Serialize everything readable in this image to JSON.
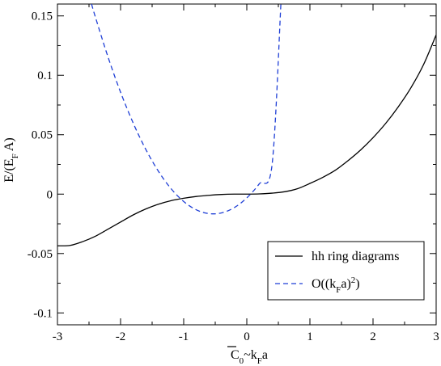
{
  "chart_data": {
    "type": "line",
    "xlabel": {
      "main": "C",
      "sub0": "0",
      "tilde": "~k",
      "subF": "F",
      "tail": "a"
    },
    "ylabel": {
      "pre": "E/(E",
      "sub": "F",
      "post": " A)"
    },
    "xlim": [
      -3,
      3
    ],
    "ylim": [
      -0.11,
      0.16
    ],
    "x_ticks": [
      -3,
      -2,
      -1,
      0,
      1,
      2,
      3
    ],
    "x_tick_labels": [
      "-3",
      "-2",
      "-1",
      "0",
      "1",
      "2",
      "3"
    ],
    "y_ticks": [
      -0.1,
      -0.05,
      0,
      0.05,
      0.1,
      0.15
    ],
    "y_tick_labels": [
      "-0.1",
      "-0.05",
      "0",
      "0.05",
      "0.1",
      "0.15"
    ],
    "grid": false,
    "legend_position": "bottom-right",
    "series": [
      {
        "name": "hh ring diagrams",
        "color": "#000000",
        "dash": "solid",
        "x": [
          -3.0,
          -2.8,
          -2.6,
          -2.4,
          -2.2,
          -2.0,
          -1.8,
          -1.6,
          -1.4,
          -1.2,
          -1.0,
          -0.8,
          -0.6,
          -0.4,
          -0.2,
          0.0,
          0.2,
          0.4,
          0.6,
          0.8,
          1.0,
          1.2,
          1.4,
          1.6,
          1.8,
          2.0,
          2.2,
          2.4,
          2.6,
          2.8,
          3.0
        ],
        "y": [
          -0.0435,
          -0.0432,
          -0.04,
          -0.0355,
          -0.0295,
          -0.0235,
          -0.0175,
          -0.0125,
          -0.0085,
          -0.0055,
          -0.0035,
          -0.002,
          -0.001,
          -0.0003,
          0.0,
          0.0,
          0.0002,
          0.0008,
          0.002,
          0.0045,
          0.009,
          0.014,
          0.02,
          0.028,
          0.037,
          0.0475,
          0.0595,
          0.0735,
          0.0895,
          0.109,
          0.134
        ]
      },
      {
        "name": "O((k_F a)^2)",
        "color": "#1f3fd6",
        "dash": "dashed",
        "legend_parts": {
          "pre": "O((k",
          "sub": "F",
          "mid": "a)",
          "sup": "2",
          "post": ")"
        },
        "x": [
          -2.46,
          -2.4,
          -2.2,
          -2.0,
          -1.8,
          -1.6,
          -1.4,
          -1.2,
          -1.0,
          -0.8,
          -0.6,
          -0.4,
          -0.2,
          0.0,
          0.2,
          0.4,
          0.54
        ],
        "y": [
          0.16,
          0.1492,
          0.1156,
          0.0858,
          0.0598,
          0.0376,
          0.0192,
          0.0046,
          -0.0062,
          -0.0132,
          -0.0164,
          -0.0158,
          -0.0114,
          -0.0032,
          0.0088,
          0.0246,
          0.16
        ]
      }
    ]
  }
}
